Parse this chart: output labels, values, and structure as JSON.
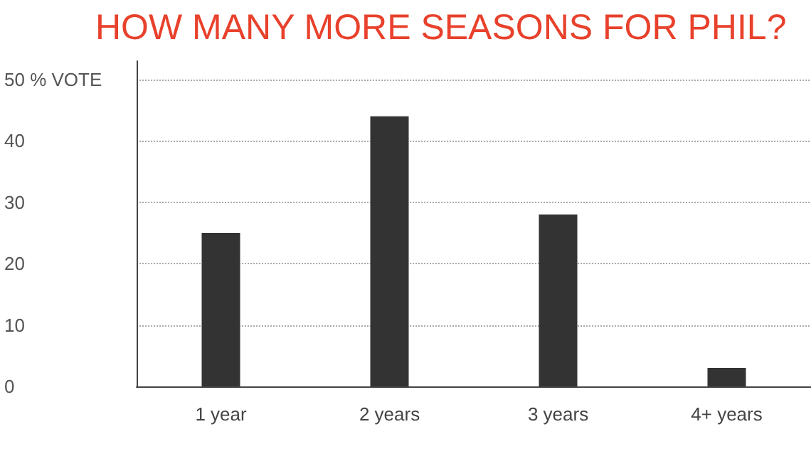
{
  "chart_data": {
    "type": "bar",
    "title": "HOW MANY MORE SEASONS FOR PHIL?",
    "categories": [
      "1 year",
      "2 years",
      "3 years",
      "4+ years"
    ],
    "values": [
      25,
      44,
      28,
      3
    ],
    "color": "#333333",
    "ylim": [
      0,
      53
    ],
    "yticks": [
      0,
      10,
      20,
      30,
      40,
      {
        "value": 50,
        "label": "50 % VOTE"
      }
    ],
    "grid": "y"
  }
}
